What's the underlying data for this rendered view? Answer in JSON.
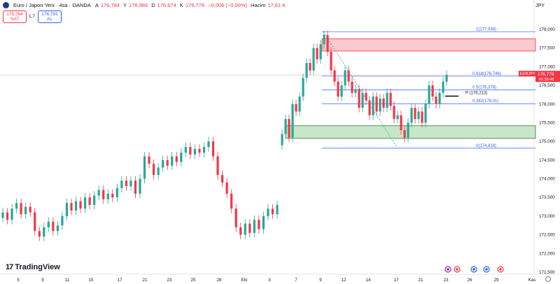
{
  "header": {
    "symbol": "Euro / Japon Yeni · 4sa · OANDA",
    "o_label": "A",
    "o": "176,784",
    "h_label": "Y",
    "h": "176,986",
    "l_label": "D",
    "l": "176,674",
    "c_label": "K",
    "c": "176,778",
    "change": "−0,006 (−0,00%)",
    "vol_label": "Hacim",
    "vol": "17,61 K",
    "currency": "JPY"
  },
  "trade": {
    "sell_price": "176,764",
    "sell_label": "SAT",
    "spread": "1,7",
    "buy_price": "176,791",
    "buy_label": "AL"
  },
  "current_price": {
    "symbol": "EURJPY",
    "price": "176,778",
    "countdown": "01:35:48"
  },
  "fib_labels": [
    "1(177,938)",
    "0.618(176,746)",
    "0.5(176,378)",
    "0.382(176,01)",
    "0(174,818)"
  ],
  "pivot_label": "P (176,213)",
  "logo": "TradingView",
  "colors": {
    "up": "#26a69a",
    "down": "#f23645",
    "fib": "#2962ff",
    "zone_red": "#f8c9cd",
    "zone_green": "#c8e6c9"
  },
  "chart_data": {
    "type": "candlestick",
    "y_ticks": [
      "178,000",
      "177,500",
      "177,000",
      "176,500",
      "176,000",
      "175,500",
      "175,000",
      "174,500",
      "174,000",
      "173,500",
      "173,000",
      "172,500",
      "172,000",
      "171,500"
    ],
    "x_ticks": [
      "5",
      "9",
      "11",
      "15",
      "17",
      "21",
      "23",
      "25",
      "28",
      "Eki",
      "3",
      "7",
      "9",
      "12",
      "14",
      "17",
      "21",
      "23",
      "26",
      "29",
      "Kas"
    ],
    "ylim": [
      171.4,
      178.3
    ],
    "candles": [
      {
        "o": 172.95,
        "c": 173.1
      },
      {
        "o": 173.1,
        "c": 172.9
      },
      {
        "o": 172.9,
        "c": 173.2
      },
      {
        "o": 173.2,
        "c": 173.35
      },
      {
        "o": 173.35,
        "c": 173.05
      },
      {
        "o": 173.05,
        "c": 173.25
      },
      {
        "o": 173.25,
        "c": 173.1
      },
      {
        "o": 173.1,
        "c": 172.6
      },
      {
        "o": 172.6,
        "c": 172.45
      },
      {
        "o": 172.45,
        "c": 172.7
      },
      {
        "o": 172.7,
        "c": 172.85
      },
      {
        "o": 172.85,
        "c": 172.6
      },
      {
        "o": 172.6,
        "c": 172.75
      },
      {
        "o": 172.75,
        "c": 173.0
      },
      {
        "o": 173.0,
        "c": 173.35
      },
      {
        "o": 173.35,
        "c": 173.15
      },
      {
        "o": 173.15,
        "c": 173.4
      },
      {
        "o": 173.4,
        "c": 173.2
      },
      {
        "o": 173.2,
        "c": 173.5
      },
      {
        "o": 173.5,
        "c": 173.3
      },
      {
        "o": 173.3,
        "c": 173.55
      },
      {
        "o": 173.55,
        "c": 173.7
      },
      {
        "o": 173.7,
        "c": 173.45
      },
      {
        "o": 173.45,
        "c": 173.6
      },
      {
        "o": 173.6,
        "c": 173.5
      },
      {
        "o": 173.5,
        "c": 173.75
      },
      {
        "o": 173.75,
        "c": 173.95
      },
      {
        "o": 173.95,
        "c": 173.8
      },
      {
        "o": 173.8,
        "c": 173.95
      },
      {
        "o": 173.95,
        "c": 173.6
      },
      {
        "o": 173.6,
        "c": 174.0
      },
      {
        "o": 174.0,
        "c": 174.6
      },
      {
        "o": 174.6,
        "c": 174.4
      },
      {
        "o": 174.4,
        "c": 174.1
      },
      {
        "o": 174.1,
        "c": 174.3
      },
      {
        "o": 174.3,
        "c": 174.5
      },
      {
        "o": 174.5,
        "c": 174.35
      },
      {
        "o": 174.35,
        "c": 174.6
      },
      {
        "o": 174.6,
        "c": 174.45
      },
      {
        "o": 174.45,
        "c": 174.7
      },
      {
        "o": 174.7,
        "c": 174.85
      },
      {
        "o": 174.85,
        "c": 174.65
      },
      {
        "o": 174.65,
        "c": 174.8
      },
      {
        "o": 174.8,
        "c": 174.7
      },
      {
        "o": 174.7,
        "c": 174.85
      },
      {
        "o": 174.85,
        "c": 175.0
      },
      {
        "o": 175.0,
        "c": 174.6
      },
      {
        "o": 174.6,
        "c": 174.1
      },
      {
        "o": 174.1,
        "c": 173.9
      },
      {
        "o": 173.9,
        "c": 173.6
      },
      {
        "o": 173.6,
        "c": 173.2
      },
      {
        "o": 173.2,
        "c": 172.7
      },
      {
        "o": 172.7,
        "c": 172.5
      },
      {
        "o": 172.5,
        "c": 172.8
      },
      {
        "o": 172.8,
        "c": 172.55
      },
      {
        "o": 172.55,
        "c": 172.9
      },
      {
        "o": 172.9,
        "c": 172.65
      },
      {
        "o": 172.65,
        "c": 173.0
      },
      {
        "o": 173.0,
        "c": 173.2
      },
      {
        "o": 173.2,
        "c": 173.05
      },
      {
        "o": 173.05,
        "c": 173.3
      },
      {
        "o": 174.9,
        "c": 175.2
      },
      {
        "o": 175.2,
        "c": 175.6
      },
      {
        "o": 175.6,
        "c": 175.1
      },
      {
        "o": 175.1,
        "c": 176.0
      },
      {
        "o": 176.0,
        "c": 175.8
      },
      {
        "o": 175.8,
        "c": 176.2
      },
      {
        "o": 176.2,
        "c": 176.7
      },
      {
        "o": 176.7,
        "c": 177.1
      },
      {
        "o": 177.1,
        "c": 176.9
      },
      {
        "o": 176.9,
        "c": 177.5
      },
      {
        "o": 177.5,
        "c": 177.2
      },
      {
        "o": 177.2,
        "c": 177.6
      },
      {
        "o": 177.6,
        "c": 177.85
      },
      {
        "o": 177.85,
        "c": 177.4
      },
      {
        "o": 177.4,
        "c": 176.9
      },
      {
        "o": 176.9,
        "c": 176.6
      },
      {
        "o": 176.6,
        "c": 176.2
      },
      {
        "o": 176.2,
        "c": 176.5
      },
      {
        "o": 176.5,
        "c": 176.9
      },
      {
        "o": 176.9,
        "c": 176.6
      },
      {
        "o": 176.6,
        "c": 176.3
      },
      {
        "o": 176.3,
        "c": 176.4
      },
      {
        "o": 176.4,
        "c": 175.9
      },
      {
        "o": 175.9,
        "c": 176.3
      },
      {
        "o": 176.3,
        "c": 176.1
      },
      {
        "o": 176.1,
        "c": 175.7
      },
      {
        "o": 175.7,
        "c": 176.2
      },
      {
        "o": 176.2,
        "c": 175.8
      },
      {
        "o": 175.8,
        "c": 176.15
      },
      {
        "o": 176.15,
        "c": 175.9
      },
      {
        "o": 175.9,
        "c": 176.3
      },
      {
        "o": 176.3,
        "c": 175.95
      },
      {
        "o": 175.95,
        "c": 175.6
      },
      {
        "o": 175.6,
        "c": 175.7
      },
      {
        "o": 175.7,
        "c": 175.3
      },
      {
        "o": 175.3,
        "c": 175.1
      },
      {
        "o": 175.1,
        "c": 175.5
      },
      {
        "o": 175.5,
        "c": 175.9
      },
      {
        "o": 175.9,
        "c": 175.6
      },
      {
        "o": 175.6,
        "c": 175.8
      },
      {
        "o": 175.8,
        "c": 175.5
      },
      {
        "o": 175.5,
        "c": 176.0
      },
      {
        "o": 176.0,
        "c": 176.5
      },
      {
        "o": 176.5,
        "c": 176.2
      },
      {
        "o": 176.2,
        "c": 176.0
      },
      {
        "o": 176.0,
        "c": 176.3
      },
      {
        "o": 176.3,
        "c": 176.6
      },
      {
        "o": 176.6,
        "c": 176.78
      }
    ],
    "fib_levels": [
      177.938,
      176.746,
      176.378,
      176.01,
      174.818
    ],
    "resistance_zone": [
      177.42,
      177.75
    ],
    "support_zone": [
      175.08,
      175.42
    ],
    "pivot": 176.213,
    "current_price": 176.778,
    "grid": false
  }
}
